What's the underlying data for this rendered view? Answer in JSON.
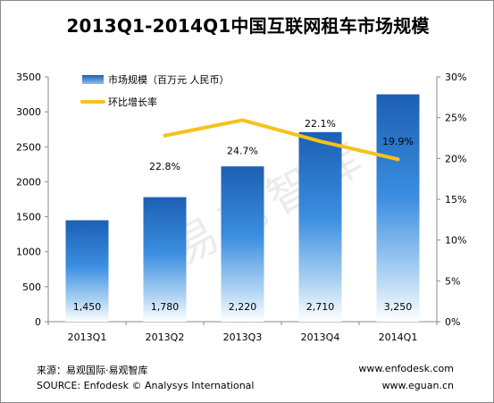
{
  "title": "2013Q1-2014Q1中国互联网租车市场规模",
  "chart_data": {
    "type": "bar+line",
    "categories": [
      "2013Q1",
      "2013Q2",
      "2013Q3",
      "2013Q4",
      "2014Q1"
    ],
    "series": [
      {
        "name": "市场规模（百万元 人民币）",
        "type": "bar",
        "axis": "left",
        "values": [
          1450,
          1780,
          2220,
          2710,
          3250
        ],
        "labels": [
          "1,450",
          "1,780",
          "2,220",
          "2,710",
          "3,250"
        ],
        "color": "#1c63b8"
      },
      {
        "name": "环比增长率",
        "type": "line",
        "axis": "right",
        "values": [
          null,
          22.8,
          24.7,
          22.1,
          19.9
        ],
        "labels": [
          "",
          "22.8%",
          "24.7%",
          "22.1%",
          "19.9%"
        ],
        "color": "#f6c21c"
      }
    ],
    "left_axis": {
      "ticks": [
        "0",
        "500",
        "1000",
        "1500",
        "2000",
        "2500",
        "3000",
        "3500"
      ],
      "range": [
        0,
        3500
      ]
    },
    "right_axis": {
      "ticks": [
        "0%",
        "5%",
        "10%",
        "15%",
        "20%",
        "25%",
        "30%"
      ],
      "range": [
        0,
        30
      ]
    },
    "legend_position": "top-left",
    "watermark": "易观智库"
  },
  "footer": {
    "source_cn": "来源：易观国际·易观智库",
    "source_en": "SOURCE: Enfodesk © Analysys International",
    "url1": "www.enfodesk.com",
    "url2": "www.eguan.cn"
  },
  "colors": {
    "line": "#f6c21c",
    "bar_top": "#1c5fb4",
    "bar_bottom": "#ffffff",
    "axis": "#8a8a8a"
  }
}
